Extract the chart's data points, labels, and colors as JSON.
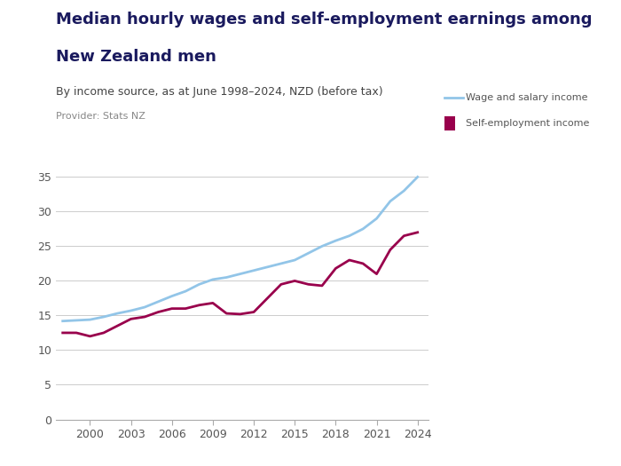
{
  "title_line1": "Median hourly wages and self-employment earnings among",
  "title_line2": "New Zealand men",
  "subtitle": "By income source, as at June 1998–2024, NZD (before tax)",
  "provider": "Provider: Stats NZ",
  "legend_labels": [
    "Wage and salary income",
    "Self-employment income"
  ],
  "wage_color": "#92C5E8",
  "self_emp_color": "#99004C",
  "title_color": "#1a1a5e",
  "subtitle_color": "#444444",
  "provider_color": "#888888",
  "background_color": "#ffffff",
  "badge_bg_color": "#3d3db5",
  "badge_text_color": "#ffffff",
  "grid_color": "#cccccc",
  "axis_color": "#aaaaaa",
  "tick_label_color": "#555555",
  "years": [
    1998,
    1999,
    2000,
    2001,
    2002,
    2003,
    2004,
    2005,
    2006,
    2007,
    2008,
    2009,
    2010,
    2011,
    2012,
    2013,
    2014,
    2015,
    2016,
    2017,
    2018,
    2019,
    2020,
    2021,
    2022,
    2023,
    2024
  ],
  "wage_values": [
    14.2,
    14.3,
    14.4,
    14.8,
    15.3,
    15.7,
    16.2,
    17.0,
    17.8,
    18.5,
    19.5,
    20.2,
    20.5,
    21.0,
    21.5,
    22.0,
    22.5,
    23.0,
    24.0,
    25.0,
    25.8,
    26.5,
    27.5,
    29.0,
    31.5,
    33.0,
    35.0
  ],
  "self_emp_values": [
    12.5,
    12.5,
    12.0,
    12.5,
    13.5,
    14.5,
    14.8,
    15.5,
    16.0,
    16.0,
    16.5,
    16.8,
    15.3,
    15.2,
    15.5,
    17.5,
    19.5,
    20.0,
    19.5,
    19.3,
    21.8,
    23.0,
    22.5,
    21.0,
    24.5,
    26.5,
    27.0
  ],
  "ylim": [
    0,
    37
  ],
  "yticks": [
    0,
    5,
    10,
    15,
    20,
    25,
    30,
    35
  ],
  "xticks": [
    2000,
    2003,
    2006,
    2009,
    2012,
    2015,
    2018,
    2021,
    2024
  ],
  "xlim_left": 1997.5,
  "xlim_right": 2024.8,
  "figsize": [
    7.0,
    5.25
  ],
  "dpi": 100,
  "title_fontsize": 13,
  "subtitle_fontsize": 9,
  "provider_fontsize": 8,
  "legend_fontsize": 8,
  "tick_fontsize": 9
}
